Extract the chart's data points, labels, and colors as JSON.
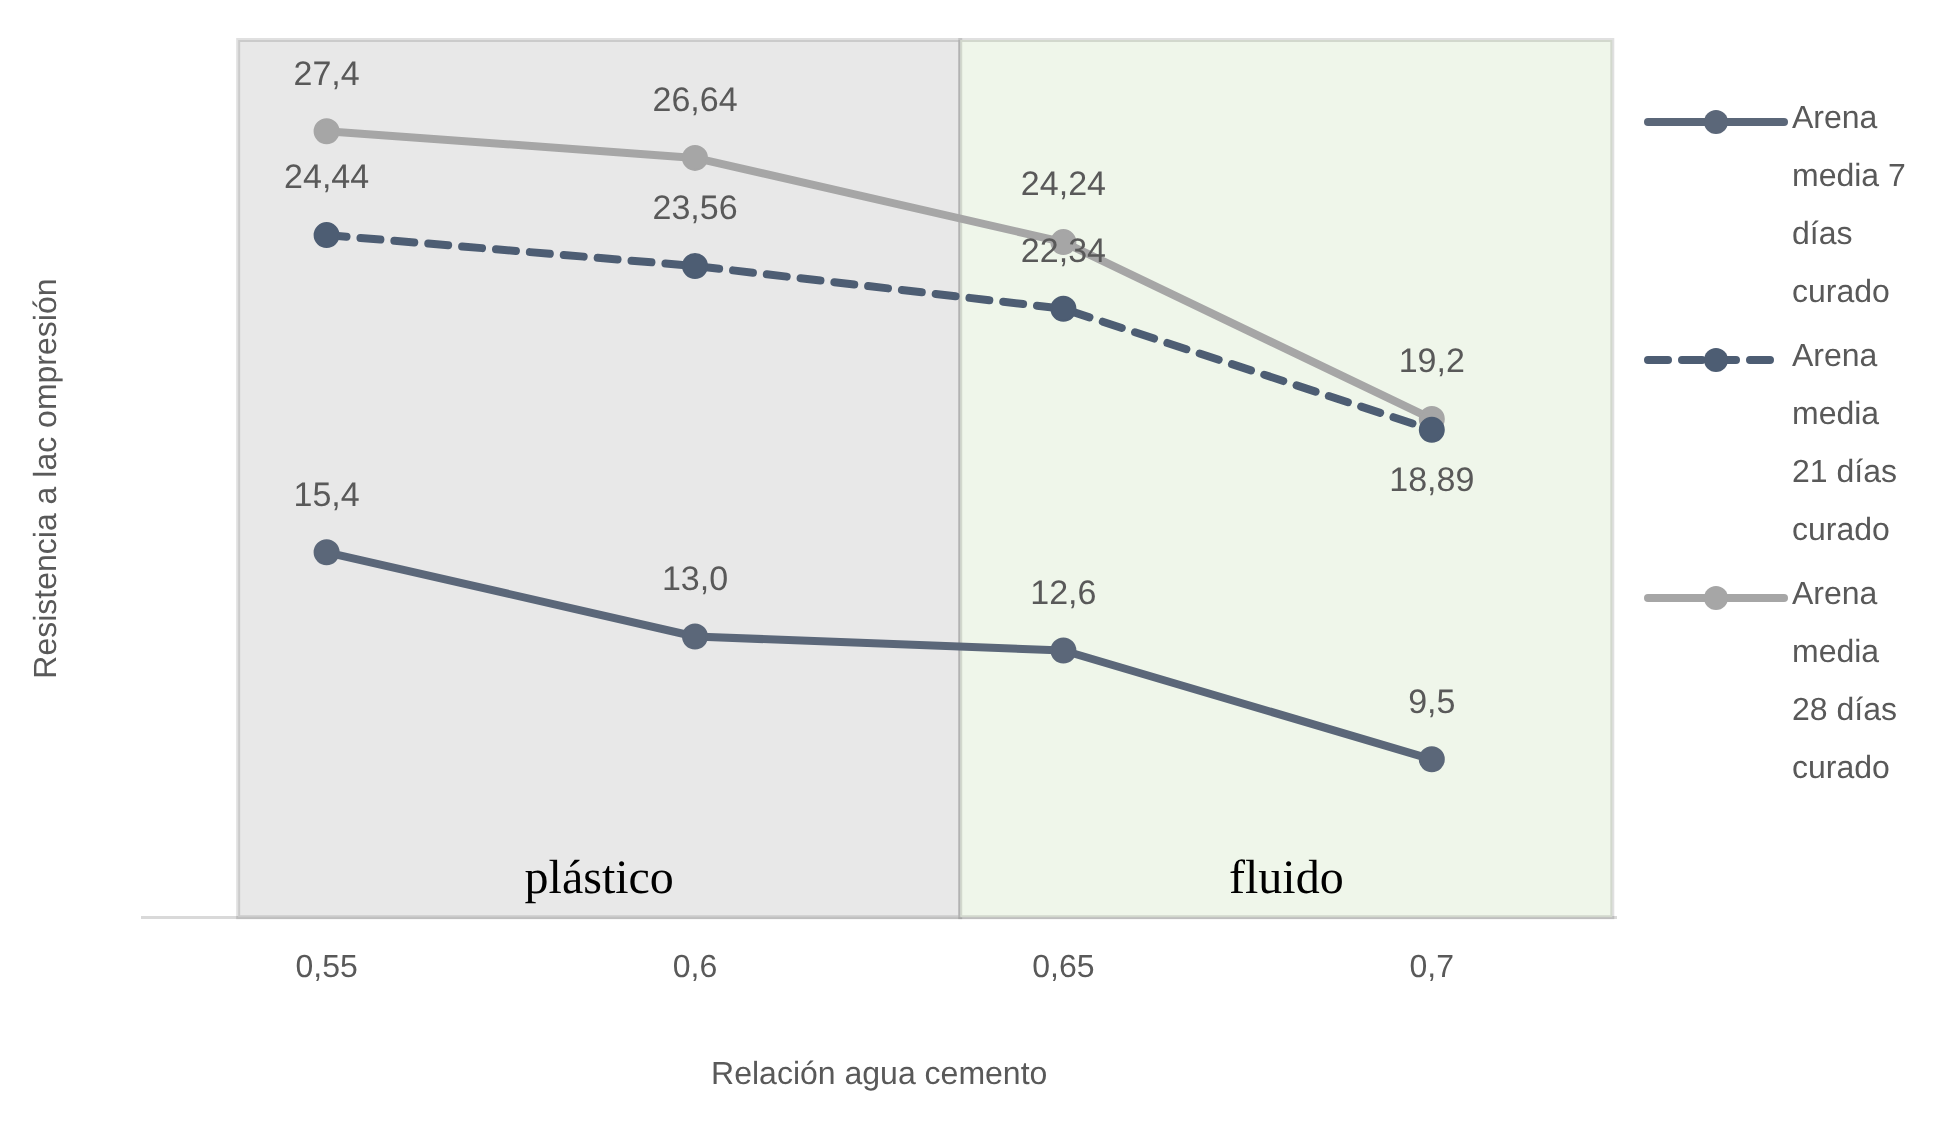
{
  "chart_data": {
    "type": "line",
    "xlabel": "Relación agua cemento",
    "ylabel": "Resistencia a lac ompresión",
    "x": [
      0.55,
      0.6,
      0.65,
      0.7
    ],
    "xlim": [
      0.525,
      0.725
    ],
    "xticks": [
      {
        "value": 0.55,
        "label": "0,55"
      },
      {
        "value": 0.6,
        "label": "0,6"
      },
      {
        "value": 0.65,
        "label": "0,65"
      },
      {
        "value": 0.7,
        "label": "0,7"
      }
    ],
    "tick_labels": "x",
    "grid": false,
    "legend": "right",
    "marker": "circle",
    "data_labels": true,
    "series": [
      {
        "name": "Arena media 7 días curado",
        "color": "#5b6779",
        "line_style": "solid",
        "values": [
          15.4,
          13.0,
          12.6,
          9.5
        ],
        "value_labels": [
          "15,4",
          "13,0",
          "12,6",
          "9,5"
        ]
      },
      {
        "name": "Arena media 21 días curado",
        "color": "#4d5d73",
        "line_style": "dashed",
        "values": [
          24.44,
          23.56,
          22.34,
          18.89
        ],
        "value_labels": [
          "24,44",
          "23,56",
          "22,34",
          "18,89"
        ]
      },
      {
        "name": "Arena media 28 días curado",
        "color": "#a6a6a6",
        "line_style": "solid",
        "values": [
          27.4,
          26.64,
          24.24,
          19.2
        ],
        "value_labels": [
          "27,4",
          "26,64",
          "24,24",
          "19,2"
        ]
      }
    ],
    "bands": [
      {
        "axis": "x",
        "from": 0.538,
        "to": 0.636,
        "label": "plástico",
        "color": "#e8e8e8"
      },
      {
        "axis": "x",
        "from": 0.636,
        "to": 0.7245,
        "label": "fluido",
        "color": "#eff6ea"
      }
    ]
  }
}
